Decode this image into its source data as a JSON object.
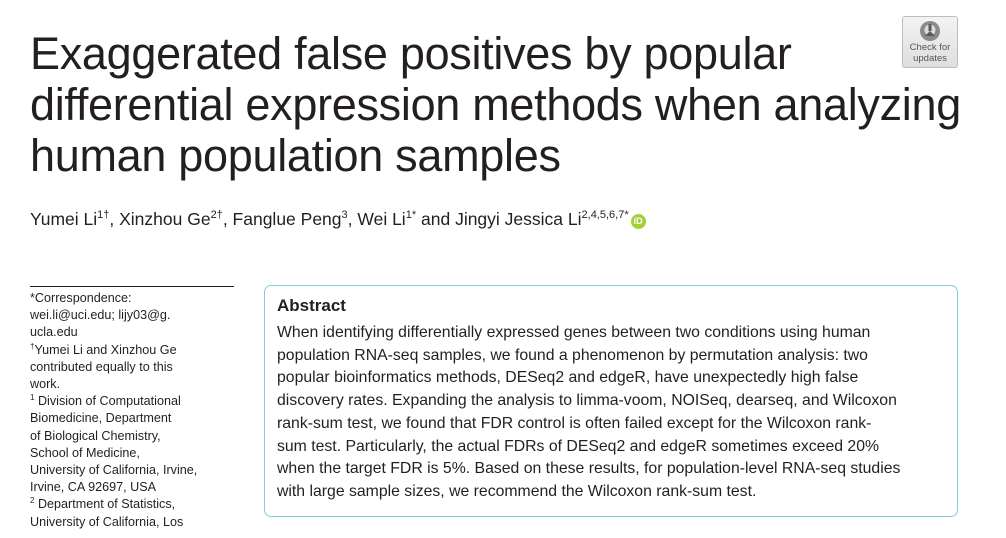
{
  "title_lines": [
    "Exaggerated false positives by popular",
    "differential expression methods when analyzing",
    "human population samples"
  ],
  "badge": {
    "icon": "check-for-updates-icon",
    "line1": "Check for",
    "line2": "updates"
  },
  "authors": [
    {
      "name": "Yumei Li",
      "sup": "1†"
    },
    {
      "name": "Xinzhou Ge",
      "sup": "2†"
    },
    {
      "name": "Fanglue Peng",
      "sup": "3"
    },
    {
      "name": "Wei Li",
      "sup": "1*"
    },
    {
      "name": "Jingyi Jessica Li",
      "sup": "2,4,5,6,7*"
    }
  ],
  "author_connector": "and",
  "orcid_label": "iD",
  "sidebar": {
    "lines": [
      "*Correspondence:",
      "wei.li@uci.edu; lijy03@g.",
      "ucla.edu",
      "Yumei Li and Xinzhou Ge",
      "contributed equally to this",
      "work.",
      "Division of Computational",
      "Biomedicine, Department",
      "of Biological Chemistry,",
      "School of Medicine,",
      "University of California, Irvine,",
      "Irvine, CA 92697, USA",
      "Department of Statistics,",
      "University of California, Los"
    ],
    "markers": {
      "dagger": "†",
      "one": "1",
      "two": "2"
    }
  },
  "abstract": {
    "heading": "Abstract",
    "lines": [
      "When identifying differentially expressed genes between two conditions using human",
      "population RNA-seq samples, we found a phenomenon by permutation analysis: two",
      "popular bioinformatics methods, DESeq2 and edgeR, have unexpectedly high false",
      "discovery rates. Expanding the analysis to limma-voom, NOISeq, dearseq, and Wilcoxon",
      "rank-sum test, we found that FDR control is often failed except for the Wilcoxon rank-",
      "sum test. Particularly, the actual FDRs of DESeq2 and edgeR sometimes exceed 20%",
      "when the target FDR is 5%. Based on these results, for population-level RNA-seq studies",
      "with large sample sizes, we recommend the Wilcoxon rank-sum test."
    ]
  },
  "colors": {
    "accent_box": "#7fd0d9",
    "orcid": "#a6ce39",
    "text": "#231f20"
  }
}
